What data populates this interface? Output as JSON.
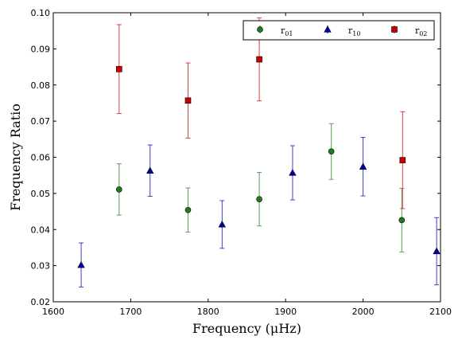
{
  "chart_data": {
    "type": "scatter",
    "xlabel": "Frequency  (μHz)",
    "ylabel": "Frequency Ratio",
    "xlim": [
      1600,
      2100
    ],
    "ylim": [
      0.02,
      0.1
    ],
    "xticks": [
      "1600",
      "1700",
      "1800",
      "1900",
      "2000",
      "2100"
    ],
    "yticks": [
      "0.02",
      "0.03",
      "0.04",
      "0.05",
      "0.06",
      "0.07",
      "0.08",
      "0.09",
      "0.10"
    ],
    "legend_position": "top-right",
    "series": [
      {
        "name": "r",
        "subscript": "01",
        "color": "#1e7d1e",
        "marker": "circle",
        "points": [
          {
            "x": 1685,
            "y": 0.0511,
            "err": 0.0071
          },
          {
            "x": 1774,
            "y": 0.0454,
            "err": 0.0061
          },
          {
            "x": 1866,
            "y": 0.0484,
            "err": 0.0074
          },
          {
            "x": 1959,
            "y": 0.0616,
            "err": 0.0077
          },
          {
            "x": 2050,
            "y": 0.0426,
            "err": 0.0088
          }
        ]
      },
      {
        "name": "r",
        "subscript": "10",
        "color": "#0000b0",
        "marker": "triangle",
        "points": [
          {
            "x": 1636,
            "y": 0.0302,
            "err": 0.0061
          },
          {
            "x": 1725,
            "y": 0.0563,
            "err": 0.0071
          },
          {
            "x": 1818,
            "y": 0.0414,
            "err": 0.0066
          },
          {
            "x": 1909,
            "y": 0.0557,
            "err": 0.0075
          },
          {
            "x": 2000,
            "y": 0.0574,
            "err": 0.0081
          },
          {
            "x": 2095,
            "y": 0.034,
            "err": 0.0093
          }
        ]
      },
      {
        "name": "r",
        "subscript": "02",
        "color": "#cc0000",
        "marker": "square",
        "points": [
          {
            "x": 1685,
            "y": 0.0844,
            "err": 0.0123
          },
          {
            "x": 1774,
            "y": 0.0757,
            "err": 0.0104
          },
          {
            "x": 1866,
            "y": 0.0871,
            "err": 0.0115
          },
          {
            "x": 2051,
            "y": 0.0592,
            "err": 0.0134
          }
        ]
      }
    ]
  }
}
